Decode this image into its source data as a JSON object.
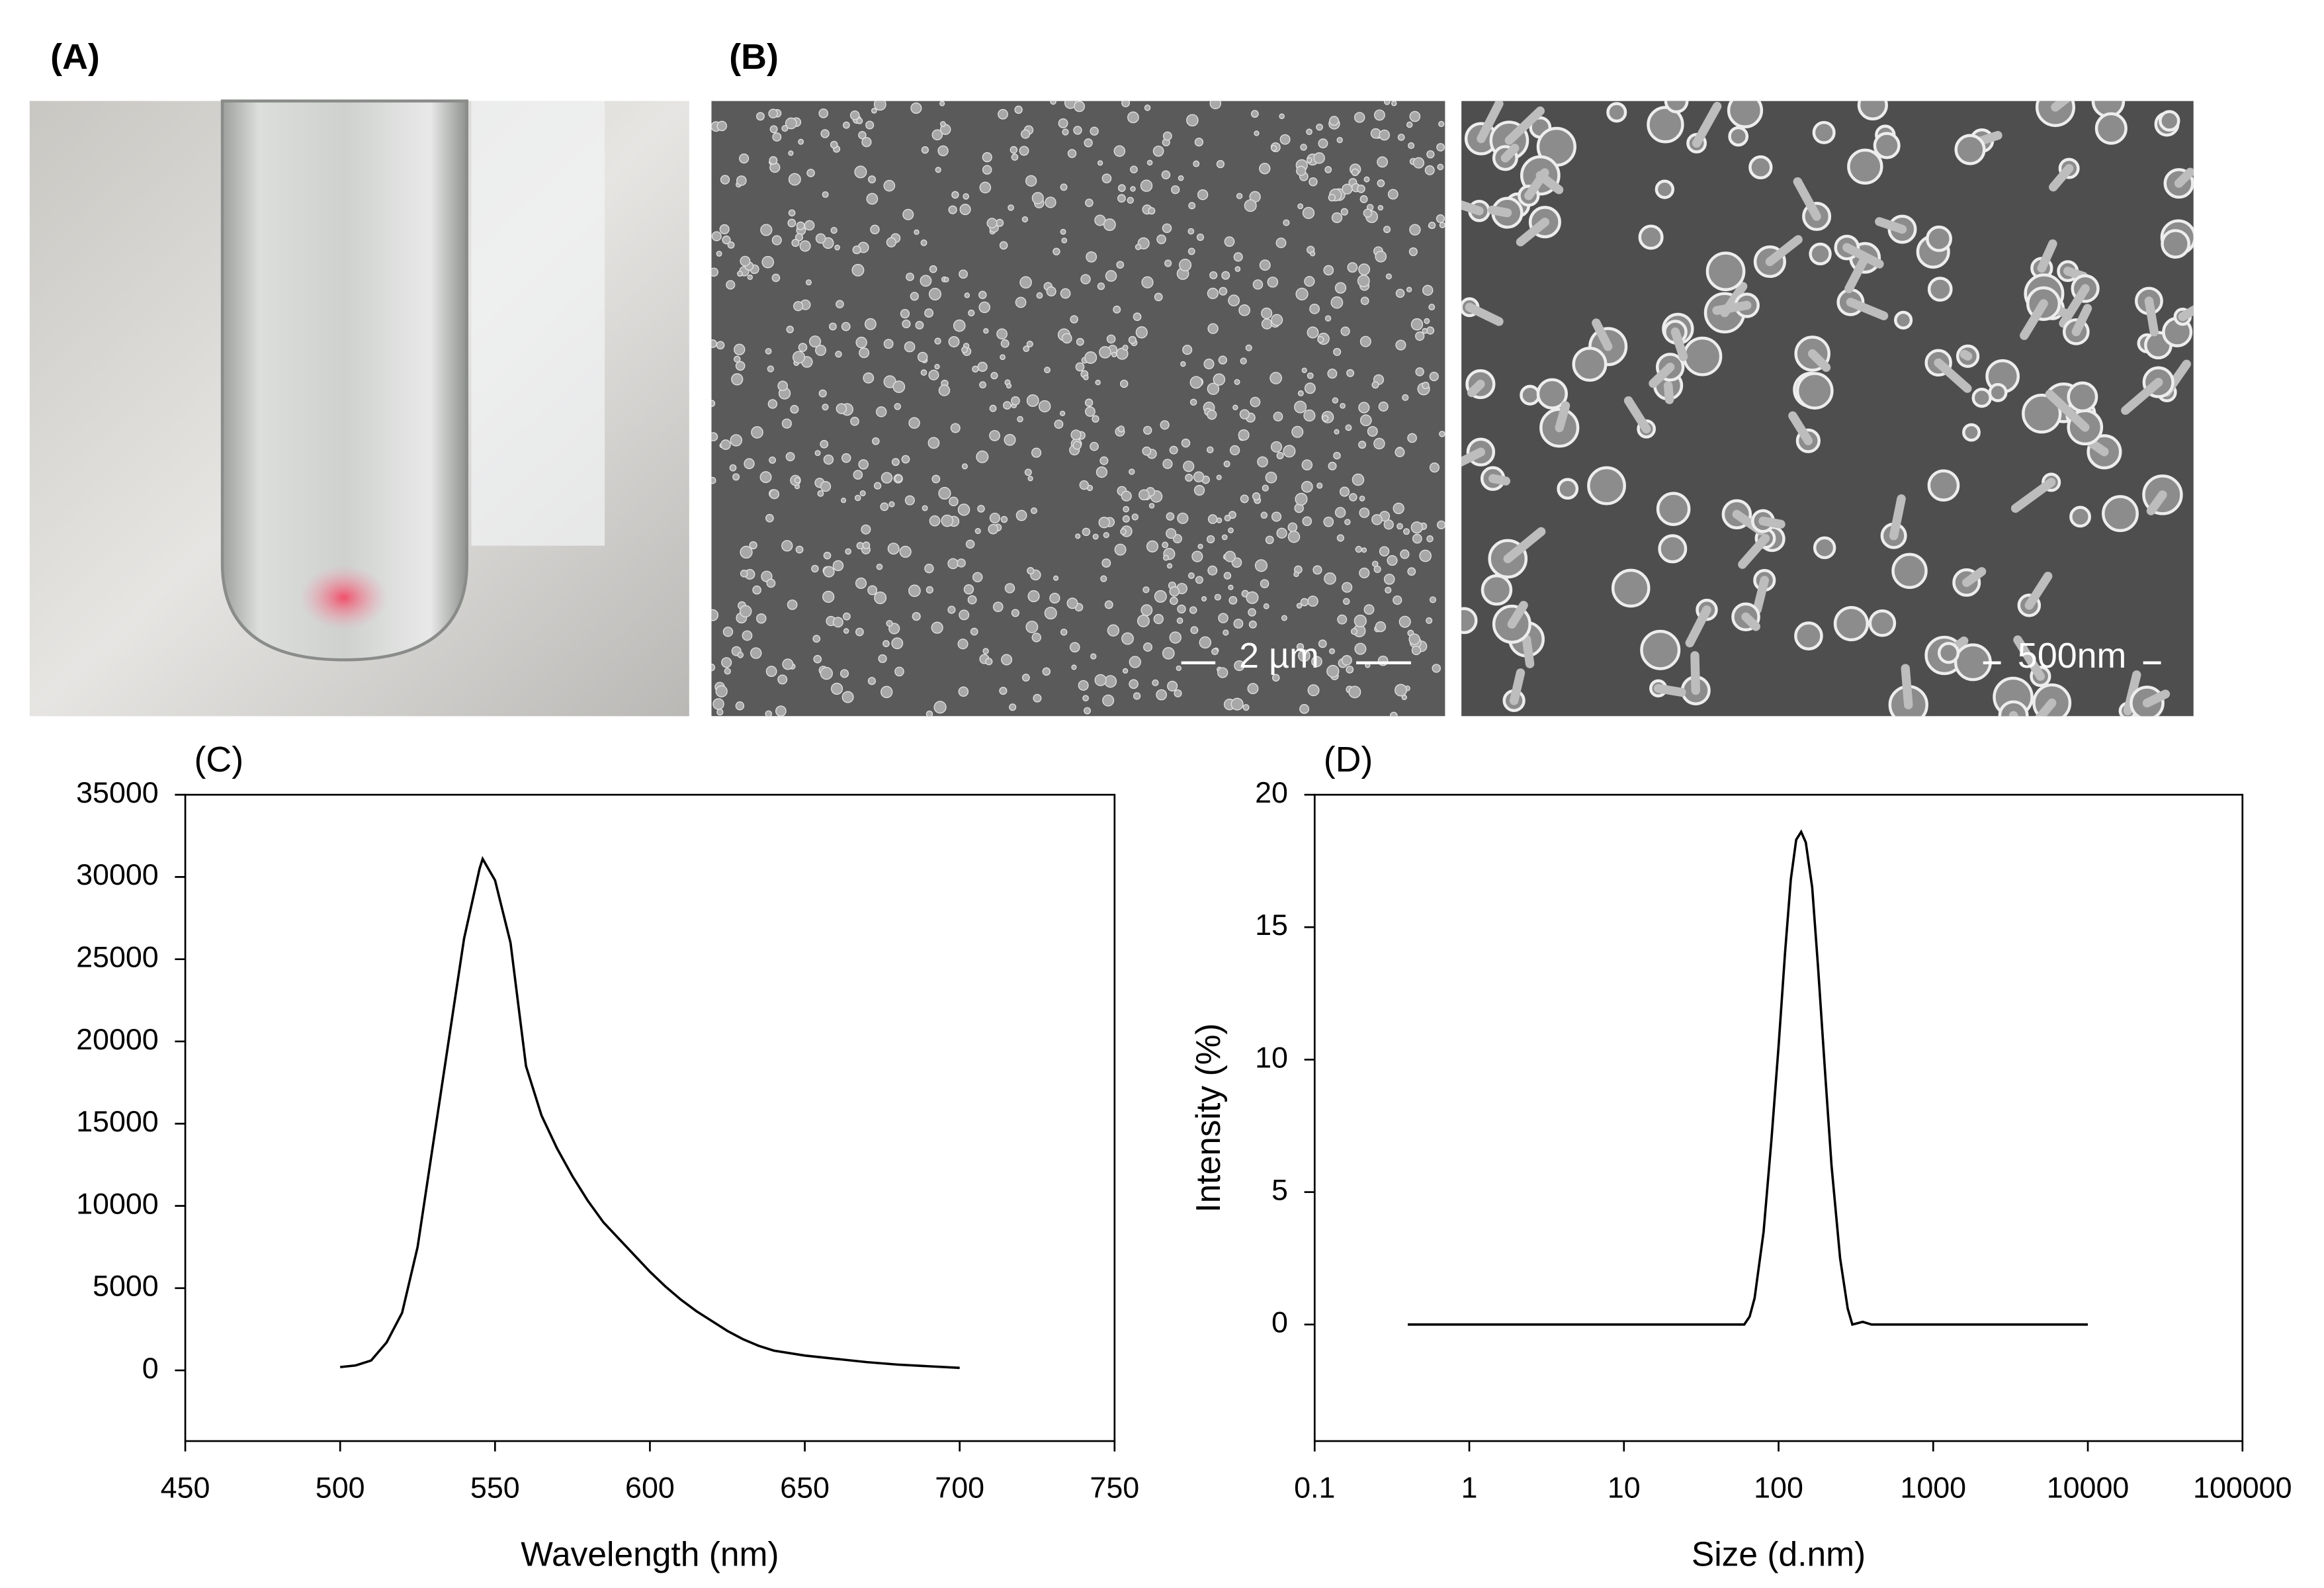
{
  "panels": {
    "A": {
      "label": "(A)"
    },
    "B": {
      "label": "(B)",
      "scale_bars": [
        "2 µm",
        "500nm"
      ]
    }
  },
  "chart_data": [
    {
      "type": "line",
      "panel_label": "(C)",
      "x_label": "Wavelength (nm)",
      "color": "#000000",
      "xscale": "linear",
      "x": [
        500,
        505,
        510,
        515,
        520,
        525,
        530,
        535,
        540,
        545,
        546,
        550,
        555,
        560,
        565,
        570,
        575,
        580,
        585,
        590,
        595,
        600,
        605,
        610,
        615,
        620,
        625,
        630,
        635,
        640,
        650,
        660,
        670,
        680,
        690,
        700
      ],
      "values": [
        200,
        300,
        600,
        1700,
        3500,
        7500,
        13750,
        20000,
        26250,
        30500,
        31100,
        29800,
        26000,
        18500,
        15500,
        13500,
        11800,
        10300,
        9000,
        8000,
        7000,
        6000,
        5100,
        4300,
        3600,
        3000,
        2400,
        1900,
        1500,
        1200,
        900,
        700,
        500,
        350,
        250,
        150
      ],
      "xlim": [
        450,
        750
      ],
      "xticks": [
        450,
        500,
        550,
        600,
        650,
        700,
        750
      ],
      "ylim": [
        -4300,
        35000
      ],
      "yticks": [
        0,
        5000,
        10000,
        15000,
        20000,
        25000,
        30000,
        35000
      ]
    },
    {
      "type": "line",
      "panel_label": "(D)",
      "x_label": "Size (d.nm)",
      "y_label": "Intensity (%)",
      "color": "#000000",
      "xscale": "log",
      "x": [
        0.4,
        60,
        65,
        70,
        80,
        90,
        100,
        110,
        120,
        130,
        140,
        150,
        165,
        180,
        200,
        220,
        250,
        280,
        300,
        350,
        400,
        10000
      ],
      "values": [
        0,
        0,
        0.3,
        1,
        3.5,
        7,
        10.5,
        14,
        16.8,
        18.3,
        18.6,
        18.2,
        16.5,
        13.5,
        9.5,
        6,
        2.5,
        0.6,
        0,
        0.1,
        0,
        0
      ],
      "xlim": [
        0.1,
        100000
      ],
      "xticks": [
        0.1,
        1,
        10,
        100,
        1000,
        10000,
        100000
      ],
      "ylim": [
        -4.4,
        20
      ],
      "yticks": [
        0,
        5,
        10,
        15,
        20
      ]
    }
  ]
}
